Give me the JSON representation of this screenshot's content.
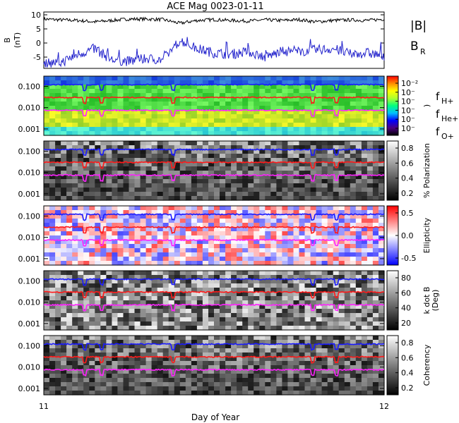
{
  "title": "ACE Mag 0023-01-11",
  "xlabel": "Day of Year",
  "x_ticks": [
    "11",
    "12"
  ],
  "top_panel": {
    "ylabel": "B\n(nT)",
    "y_ticks": [
      "10",
      "5",
      "0",
      "-5"
    ],
    "legend": [
      {
        "label": "|B|",
        "sub": "",
        "color": "#000000"
      },
      {
        "label": "B",
        "sub": "R",
        "color": "#3333cc"
      }
    ]
  },
  "freq_labels": [
    {
      "label": "f",
      "sub": "H+",
      "color": "#2222dd"
    },
    {
      "label": "f",
      "sub": "He+",
      "color": "#ee2222"
    },
    {
      "label": "f",
      "sub": "O+",
      "color": "#ee22ee"
    }
  ],
  "panels": [
    {
      "id": "power",
      "y_ticks": [
        "0.100",
        "0.010",
        "0.001"
      ],
      "colorbar_label": ")",
      "colorbar_ticks": [
        "10⁻²",
        "10⁻",
        "10⁻",
        "10⁻",
        "10⁻",
        "10⁻"
      ]
    },
    {
      "id": "polarization",
      "y_ticks": [
        "0.100",
        "0.010",
        "0.001"
      ],
      "colorbar_label": "% Polarization",
      "colorbar_ticks": [
        "0.8",
        "0.6",
        "0.4",
        "0.2"
      ]
    },
    {
      "id": "ellipticity",
      "y_ticks": [
        "0.100",
        "0.010",
        "0.001"
      ],
      "colorbar_label": "Ellipticity",
      "colorbar_ticks": [
        "0.5",
        "0.0",
        "-0.5"
      ]
    },
    {
      "id": "kdotb",
      "y_ticks": [
        "0.100",
        "0.010",
        "0.001"
      ],
      "colorbar_label": "k dot B\n(Deg)",
      "colorbar_ticks": [
        "80",
        "60",
        "40",
        "20"
      ]
    },
    {
      "id": "coherency",
      "y_ticks": [
        "0.100",
        "0.010",
        "0.001"
      ],
      "colorbar_label": "Coherency",
      "colorbar_ticks": [
        "0.8",
        "0.6",
        "0.4",
        "0.2"
      ]
    }
  ],
  "chart_data": {
    "type": "line",
    "title": "ACE Mag 0023-01-11",
    "xlabel": "Day of Year",
    "xlim": [
      11,
      12
    ],
    "top_panel": {
      "ylim": [
        -9,
        11
      ],
      "series": [
        {
          "name": "|B|",
          "color": "#000000",
          "x": [
            11.0,
            11.05,
            11.1,
            11.15,
            11.2,
            11.25,
            11.3,
            11.35,
            11.4,
            11.45,
            11.5,
            11.55,
            11.6,
            11.65,
            11.7,
            11.75,
            11.8,
            11.85,
            11.9,
            11.95,
            12.0
          ],
          "y": [
            8.5,
            8.2,
            8.0,
            7.5,
            8.0,
            8.5,
            8.5,
            8.3,
            7.0,
            8.0,
            8.3,
            8.0,
            7.8,
            8.2,
            8.0,
            8.3,
            7.5,
            8.0,
            8.2,
            8.0,
            8.5
          ]
        },
        {
          "name": "B_R",
          "color": "#2222cc",
          "x": [
            11.0,
            11.05,
            11.1,
            11.15,
            11.2,
            11.25,
            11.3,
            11.35,
            11.4,
            11.45,
            11.5,
            11.55,
            11.6,
            11.65,
            11.7,
            11.75,
            11.8,
            11.85,
            11.9,
            11.95,
            12.0
          ],
          "y": [
            -7.0,
            -7.0,
            -4.0,
            -2.0,
            -6.0,
            -6.5,
            -5.5,
            -6.0,
            1.0,
            -2.0,
            -3.5,
            -4.0,
            -3.0,
            -5.0,
            -3.0,
            -3.0,
            -2.5,
            -2.0,
            -4.0,
            -3.5,
            -4.5
          ]
        }
      ]
    },
    "spectral_panels": {
      "ylim": [
        0.0005,
        0.3
      ],
      "yscale": "log",
      "series": [
        {
          "name": "fH+",
          "color": "#1a1aff",
          "y": 0.12
        },
        {
          "name": "fHe+",
          "color": "#ff1a1a",
          "y": 0.03
        },
        {
          "name": "fO+",
          "color": "#ff22ff",
          "y": 0.0075
        }
      ],
      "dips_at_x": [
        11.12,
        11.17,
        11.38,
        11.79,
        11.86
      ]
    }
  }
}
